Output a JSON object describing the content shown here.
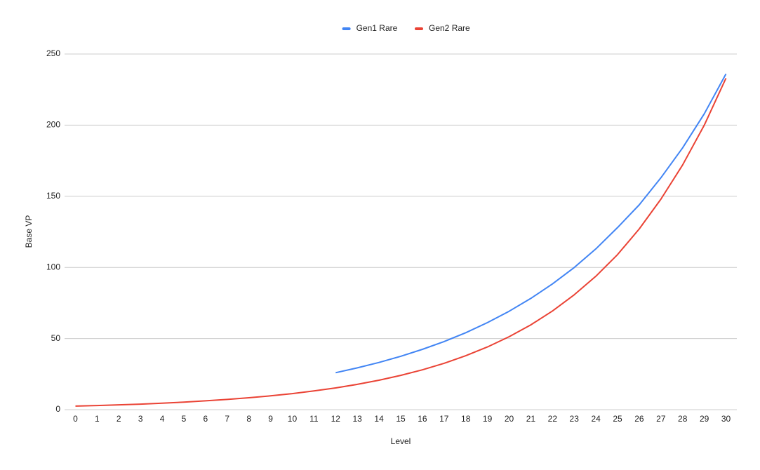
{
  "chart_data": {
    "type": "line",
    "x_label": "Level",
    "y_label": "Base VP",
    "categories": [
      "0",
      "1",
      "2",
      "3",
      "4",
      "5",
      "6",
      "7",
      "8",
      "9",
      "10",
      "11",
      "12",
      "13",
      "14",
      "15",
      "16",
      "17",
      "18",
      "19",
      "20",
      "21",
      "22",
      "23",
      "24",
      "25",
      "26",
      "27",
      "28",
      "29",
      "30"
    ],
    "series": [
      {
        "name": "Gen1 Rare",
        "color": "#4285f4",
        "values": [
          null,
          null,
          null,
          null,
          null,
          null,
          null,
          null,
          null,
          null,
          null,
          null,
          26,
          29.4,
          33.2,
          37.5,
          42.4,
          47.9,
          54.1,
          61.2,
          69.2,
          78.2,
          88.4,
          99.9,
          113,
          128,
          144,
          163,
          184,
          208,
          236
        ]
      },
      {
        "name": "Gen2 Rare",
        "color": "#ea4335",
        "values": [
          2.5,
          2.9,
          3.4,
          3.9,
          4.6,
          5.3,
          6.2,
          7.2,
          8.4,
          9.7,
          11.3,
          13.2,
          15.3,
          17.8,
          20.7,
          24.1,
          28,
          32.6,
          37.9,
          44.1,
          51.3,
          59.6,
          69.4,
          80.7,
          93.8,
          109,
          127,
          148,
          172,
          200,
          233
        ]
      }
    ],
    "ylim": [
      0,
      250
    ],
    "yticks": [
      0,
      50,
      100,
      150,
      200,
      250
    ],
    "grid": true,
    "legend": "top"
  }
}
